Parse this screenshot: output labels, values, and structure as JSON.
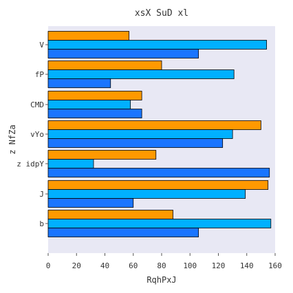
{
  "chart_data": {
    "type": "bar",
    "orientation": "horizontal",
    "title": "xsX SuD  xl",
    "xlabel": "RqhPxJ",
    "ylabel": "z NfZa",
    "categories": [
      "V",
      "fP",
      "CMD",
      "vYo",
      "z idpY",
      "J",
      "b"
    ],
    "series": [
      {
        "values": [
          57,
          80,
          66,
          150,
          76,
          155,
          88
        ],
        "color": "#ff9900"
      },
      {
        "values": [
          154,
          131,
          58,
          130,
          32,
          139,
          157
        ],
        "color": "#00b0ff"
      },
      {
        "values": [
          106,
          44,
          66,
          123,
          156,
          60,
          106
        ],
        "color": "#1a75ff"
      }
    ],
    "xlim": [
      0,
      160
    ],
    "xticks": [
      0,
      20,
      40,
      60,
      80,
      100,
      120,
      140,
      160
    ],
    "grid": false,
    "background": "#e8e8f4"
  }
}
